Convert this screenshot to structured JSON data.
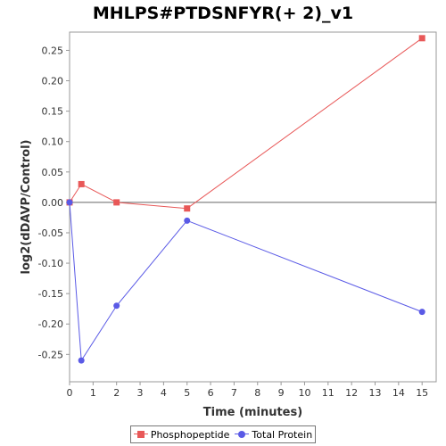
{
  "chart_data": {
    "type": "line",
    "title": "MHLPS#PTDSNFYR(+ 2)_v1",
    "xlabel": "Time (minutes)",
    "ylabel": "log2(dDAVP/Control)",
    "xlim": [
      0,
      15.6
    ],
    "ylim": [
      -0.295,
      0.28
    ],
    "xticks": [
      0,
      1,
      2,
      3,
      4,
      5,
      6,
      7,
      8,
      9,
      10,
      11,
      12,
      13,
      14,
      15
    ],
    "xtick_labels": [
      "0",
      "1",
      "2",
      "3",
      "4",
      "5",
      "6",
      "7",
      "8",
      "9",
      "10",
      "11",
      "12",
      "13",
      "14",
      "15"
    ],
    "yticks": [
      0.25,
      0.2,
      0.15,
      0.1,
      0.05,
      0.0,
      -0.05,
      -0.1,
      -0.15,
      -0.2,
      -0.25
    ],
    "ytick_labels": [
      "0.25",
      "0.20",
      "0.15",
      "0.10",
      "0.05",
      "0.00",
      "-0.05",
      "-0.10",
      "-0.15",
      "-0.20",
      "-0.25"
    ],
    "zero_line": true,
    "grid": false,
    "legend_position": "bottom",
    "series": [
      {
        "name": "Phosphopeptide",
        "color": "#e85858",
        "marker": "square",
        "x": [
          0,
          0.5,
          2,
          5,
          15
        ],
        "y": [
          0.0,
          0.03,
          0.0,
          -0.01,
          0.27
        ]
      },
      {
        "name": "Total Protein",
        "color": "#5a5ae6",
        "marker": "circle",
        "x": [
          0,
          0.5,
          2,
          5,
          15
        ],
        "y": [
          0.0,
          -0.26,
          -0.17,
          -0.03,
          -0.18
        ]
      }
    ]
  }
}
